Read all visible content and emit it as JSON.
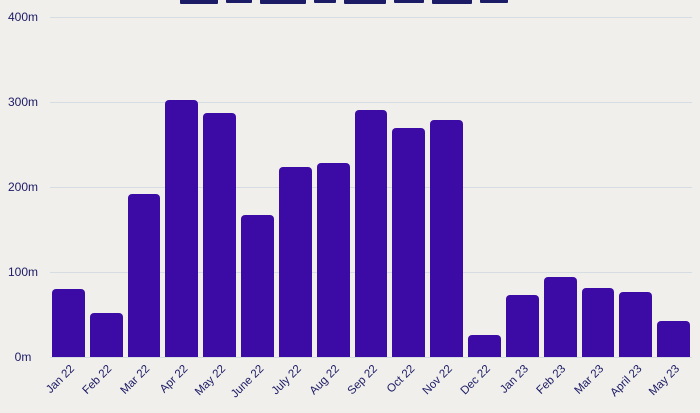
{
  "colors": {
    "bg": "#f0efeb",
    "bar": "#3c0ba6",
    "grid": "#d6dde2",
    "axis": "#1c1b66"
  },
  "chart_data": {
    "type": "bar",
    "title": "",
    "unit": "m",
    "categories": [
      "Jan 22",
      "Feb 22",
      "Mar 22",
      "Apr 22",
      "May 22",
      "June 22",
      "July 22",
      "Aug 22",
      "Sep 22",
      "Oct 22",
      "Nov 22",
      "Dec 22",
      "Jan 23",
      "Feb 23",
      "Mar 23",
      "April 23",
      "May 23"
    ],
    "values": [
      80,
      52,
      192,
      302,
      287,
      167,
      224,
      228,
      291,
      270,
      279,
      26,
      73,
      94,
      81,
      77,
      42
    ],
    "y_ticks": [
      "400m",
      "300m",
      "200m",
      "100m",
      "0m"
    ],
    "ylim": [
      0,
      400
    ],
    "xlabel": "",
    "ylabel": "",
    "grid": "horizontal",
    "legend": "none"
  }
}
